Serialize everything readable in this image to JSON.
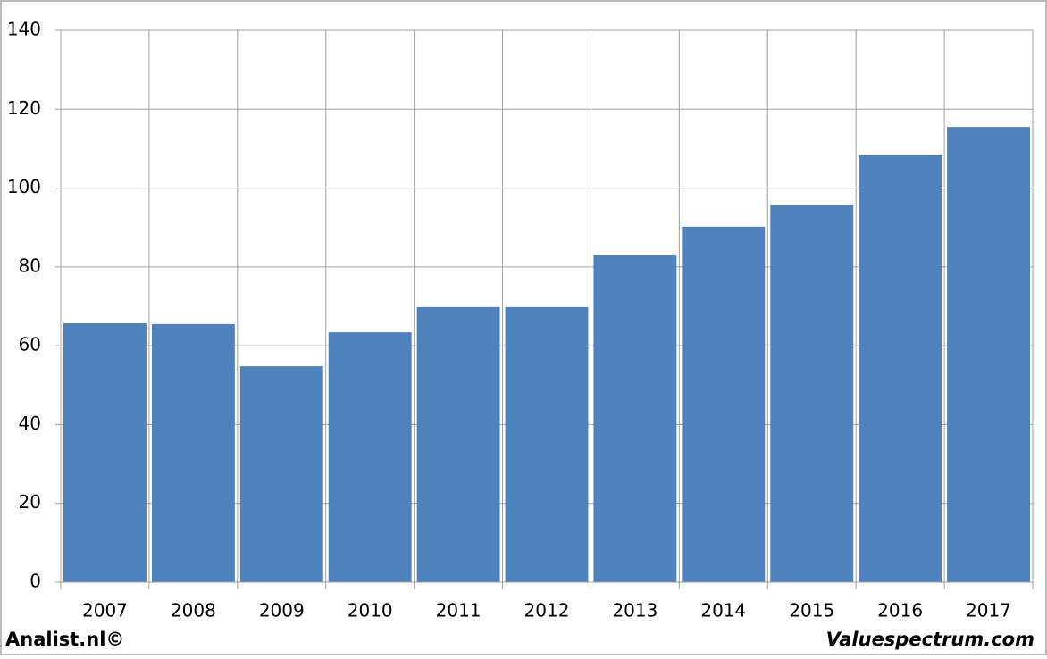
{
  "chart_data": {
    "type": "bar",
    "categories": [
      "2007",
      "2008",
      "2009",
      "2010",
      "2011",
      "2012",
      "2013",
      "2014",
      "2015",
      "2016",
      "2017"
    ],
    "values": [
      65.7,
      65.5,
      54.8,
      63.4,
      69.8,
      69.8,
      82.9,
      90.2,
      95.6,
      108.3,
      115.5
    ],
    "color": "#4f81bd",
    "ylim": [
      0,
      140
    ],
    "yticks": [
      0,
      20,
      40,
      60,
      80,
      100,
      120,
      140
    ],
    "grid": true,
    "annotations": [
      "Analist.nl©",
      "Valuespectrum.com"
    ]
  }
}
